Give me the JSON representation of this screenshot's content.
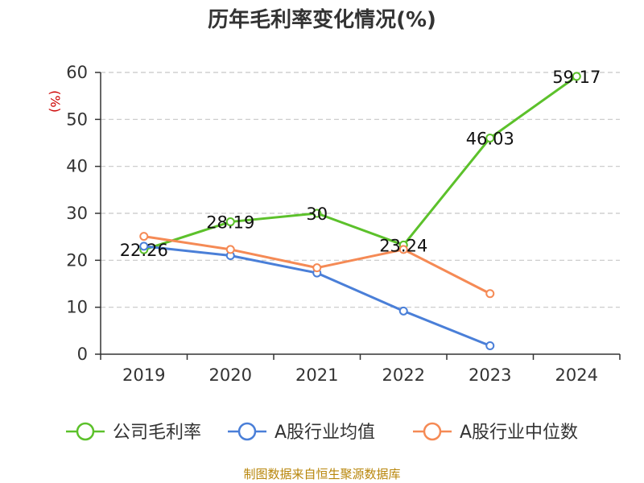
{
  "source_text": "制图数据来自恒生聚源数据库",
  "colors": {
    "axis": "#333333",
    "grid": "#c8c8c8",
    "ylabel": "#cc0000",
    "source": "#b8860b"
  },
  "chart_data": {
    "type": "line",
    "title": "历年毛利率变化情况(%)",
    "xlabel": "",
    "ylabel": "(%)",
    "categories": [
      "2019",
      "2020",
      "2021",
      "2022",
      "2023",
      "2024"
    ],
    "ylim": [
      0,
      60
    ],
    "yticks": [
      0,
      10,
      20,
      30,
      40,
      50,
      60
    ],
    "grid": true,
    "legend_position": "bottom",
    "series": [
      {
        "name": "公司毛利率",
        "color": "#5cc12b",
        "values": [
          22.26,
          28.19,
          30,
          23.24,
          46.03,
          59.17
        ],
        "labels": [
          "22.26",
          "28.19",
          "30",
          "23.24",
          "46.03",
          "59.17"
        ]
      },
      {
        "name": "A股行业均值",
        "color": "#4a7fd8",
        "values": [
          23.0,
          21.0,
          17.3,
          9.2,
          1.8,
          null
        ]
      },
      {
        "name": "A股行业中位数",
        "color": "#f58a55",
        "values": [
          25.1,
          22.3,
          18.4,
          22.3,
          12.9,
          null
        ]
      }
    ]
  }
}
